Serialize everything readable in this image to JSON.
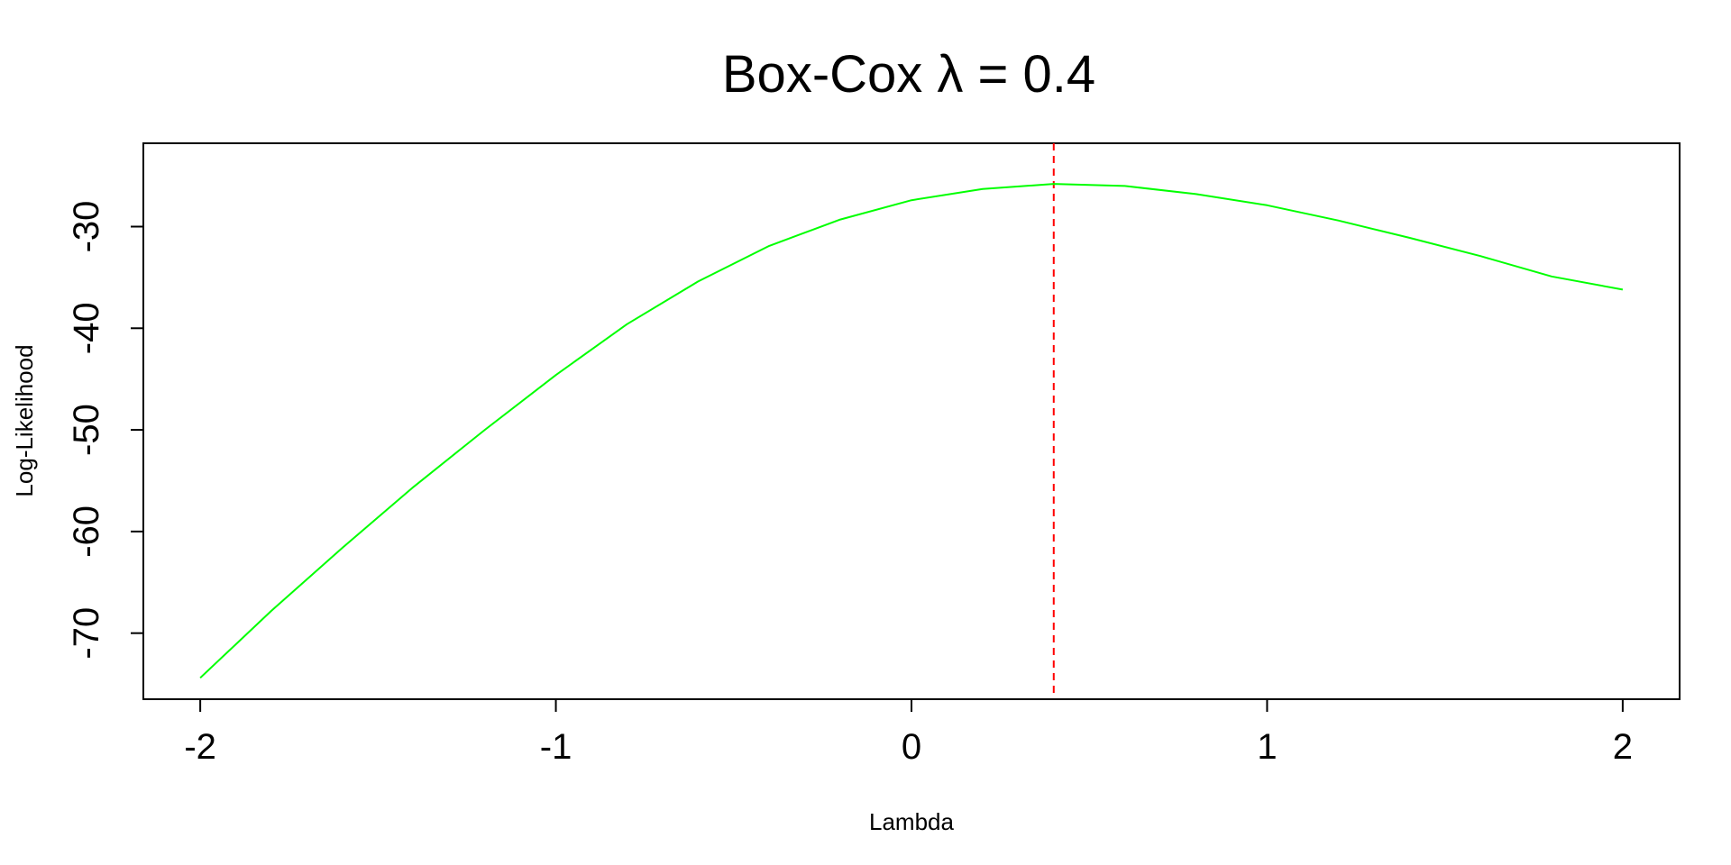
{
  "chart_data": {
    "type": "line",
    "title": "Box-Cox λ = 0.4",
    "xlabel": "Lambda",
    "ylabel": "Log-Likelihood",
    "xlim": [
      -2.16,
      2.16
    ],
    "ylim": [
      -76.5,
      -21.8
    ],
    "xticks": [
      -2,
      -1,
      0,
      1,
      2
    ],
    "xtick_labels": [
      "-2",
      "-1",
      "0",
      "1",
      "2"
    ],
    "yticks": [
      -70,
      -60,
      -50,
      -40,
      -30
    ],
    "ytick_labels": [
      "-70",
      "-60",
      "-50",
      "-40",
      "-30"
    ],
    "grid": false,
    "series": [
      {
        "color": "#00ff00",
        "x": [
          -2.0,
          -1.8,
          -1.6,
          -1.4,
          -1.2,
          -1.0,
          -0.8,
          -0.6,
          -0.4,
          -0.2,
          0.0,
          0.2,
          0.4,
          0.6,
          0.8,
          1.0,
          1.2,
          1.4,
          1.6,
          1.8,
          2.0
        ],
        "y": [
          -74.4,
          -67.8,
          -61.6,
          -55.6,
          -50.0,
          -44.6,
          -39.6,
          -35.4,
          -31.9,
          -29.3,
          -27.4,
          -26.3,
          -25.8,
          -26.0,
          -26.8,
          -27.9,
          -29.4,
          -31.1,
          -32.9,
          -34.9,
          -36.2
        ]
      }
    ],
    "reference_line": {
      "type": "vertical",
      "x": 0.4,
      "color": "#ff0000",
      "style": "dashed"
    }
  }
}
